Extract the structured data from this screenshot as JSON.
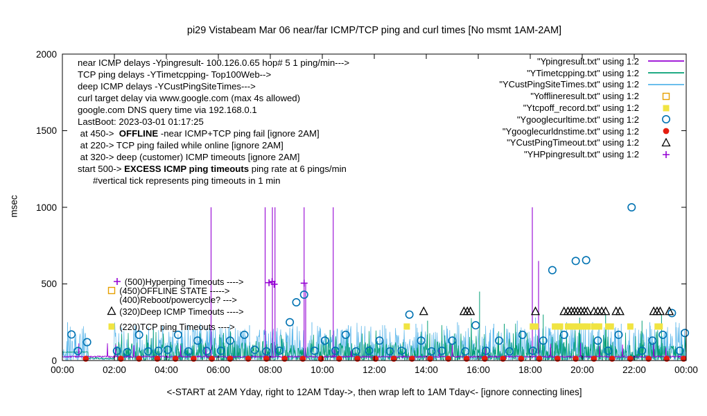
{
  "title": "pi29 Vistabeam Mar 06  near/far ICMP/TCP ping and curl times [No msmt 1AM-2AM]",
  "chart_data": {
    "type": "line",
    "title": "pi29 Vistabeam Mar 06  near/far ICMP/TCP ping and curl times [No msmt 1AM-2AM]",
    "ylabel": "msec",
    "xlabel": "<-START at 2AM Yday, right to 12AM Tday->, then wrap left to 1AM Tday<- [ignore connecting lines]",
    "xlim": [
      0,
      24
    ],
    "ylim": [
      0,
      2000
    ],
    "yticks": [
      0,
      500,
      1000,
      1500,
      2000
    ],
    "xtick_labels": [
      "00:00",
      "02:00",
      "04:00",
      "06:00",
      "08:00",
      "10:00",
      "12:00",
      "14:00",
      "16:00",
      "18:00",
      "20:00",
      "22:00",
      "00:00"
    ],
    "grid": false,
    "legend_position": "top-right-inside",
    "legend": [
      {
        "name": "near-icmp",
        "label": "\"Ypingresult.txt\" using 1:2",
        "marker": "line",
        "color": "#9400d3"
      },
      {
        "name": "tcp-ping",
        "label": "\"YTimetcpping.txt\" using 1:2",
        "marker": "line",
        "color": "#009e73"
      },
      {
        "name": "deep-icmp",
        "label": "\"YCustPingSiteTimes.txt\" using 1:2",
        "marker": "line",
        "color": "#56b4e9"
      },
      {
        "name": "offline",
        "label": "\"Yofflineresult.txt\" using 1:2",
        "marker": "open-square",
        "color": "#e69f00"
      },
      {
        "name": "tcp-off",
        "label": "\"Ytcpoff_record.txt\" using 1:2",
        "marker": "filled-square",
        "color": "#f0e442"
      },
      {
        "name": "curl-time",
        "label": "\"Ygooglecurltime.txt\" using 1:2",
        "marker": "open-circle",
        "color": "#0072b2"
      },
      {
        "name": "dns-time",
        "label": "\"Ygooglecurldnstime.txt\" using 1:2",
        "marker": "filled-circle",
        "color": "#e51e10"
      },
      {
        "name": "cust-timeout",
        "label": "\"YCustPingTimeout.txt\" using 1:2",
        "marker": "open-triangle",
        "color": "#000000"
      },
      {
        "name": "hp-ping",
        "label": "\"YHPpingresult.txt\" using 1:2",
        "marker": "plus",
        "color": "#9400d3"
      }
    ],
    "notes": [
      [
        {
          "t": "near ICMP delays -Ypingresult- 100.126.0.65 hop# 5 1 ping/min--->"
        }
      ],
      [
        {
          "t": "TCP ping delays -YTimetcpping- Top100Web-->"
        }
      ],
      [
        {
          "t": "deep ICMP delays -YCustPingSiteTimes--->"
        }
      ],
      [
        {
          "t": "curl target delay via www.google.com (max 4s allowed)"
        }
      ],
      [
        {
          "t": "google.com DNS query time via 192.168.0.1"
        }
      ],
      [
        {
          "t": "LastBoot: 2023-03-01 01:17:25"
        }
      ],
      [
        {
          "t": " at 450->  "
        },
        {
          "t": "OFFLINE",
          "b": true
        },
        {
          "t": " -near ICMP+TCP ping fail [ignore 2AM]"
        }
      ],
      [
        {
          "t": " at 220-> TCP ping failed while online [ignore 2AM]"
        }
      ],
      [
        {
          "t": " at 320-> deep (customer) ICMP timeouts [ignore 2AM]"
        }
      ],
      [
        {
          "t": "start 500-> "
        },
        {
          "t": "EXCESS ICMP ping timeouts",
          "b": true
        },
        {
          "t": " ping rate at 6 pings/min"
        }
      ],
      [
        {
          "t": "      #vertical tick represents ping timeouts in 1 min"
        }
      ]
    ],
    "event_labels": [
      {
        "marker": "plus",
        "color": "#9400d3",
        "text": "(500)Hyperping Timeouts ---->",
        "x": 2.1,
        "y": 515
      },
      {
        "marker": "open-square",
        "color": "#e69f00",
        "text": "(450)OFFLINE STATE ----->",
        "x": 1.9,
        "y": 455
      },
      {
        "marker": "",
        "color": "",
        "text": "(400)Reboot/powercycle? --->",
        "x": 1.9,
        "y": 395
      },
      {
        "marker": "open-triangle",
        "color": "#000000",
        "text": "(320)Deep ICMP Timeouts ---->",
        "x": 1.9,
        "y": 320
      },
      {
        "marker": "filled-square",
        "color": "#f0e442",
        "text": "(220)TCP ping Timeouts ---->",
        "x": 1.9,
        "y": 220
      }
    ],
    "series": {
      "near_icmp": {
        "color": "#9400d3",
        "style": "noisy-line",
        "baseline": 25,
        "jitter": 10
      },
      "near_icmp_impulses": {
        "color": "#9400d3",
        "points": [
          [
            5.72,
            1000
          ],
          [
            7.8,
            1000
          ],
          [
            8.08,
            1000
          ],
          [
            8.18,
            1000
          ],
          [
            9.3,
            1000
          ],
          [
            9.36,
            500
          ],
          [
            10.42,
            1000
          ],
          [
            18.08,
            1000
          ],
          [
            18.32,
            650
          ]
        ]
      },
      "tcp_ping": {
        "color": "#009e73",
        "style": "noisy-line",
        "band": [
          0,
          200
        ],
        "spikes": [
          [
            3.5,
            200
          ],
          [
            6.2,
            180
          ],
          [
            10.3,
            200
          ],
          [
            14.05,
            260
          ],
          [
            16.05,
            450
          ],
          [
            17.0,
            240
          ],
          [
            18.5,
            300
          ],
          [
            19.9,
            280
          ],
          [
            20.9,
            300
          ],
          [
            22.3,
            260
          ],
          [
            23.05,
            300
          ]
        ]
      },
      "deep_icmp": {
        "color": "#56b4e9",
        "style": "noisy-line",
        "band": [
          0,
          250
        ],
        "spikes": [
          [
            0.2,
            250
          ],
          [
            2.8,
            230
          ],
          [
            4.6,
            240
          ],
          [
            5.3,
            240
          ],
          [
            7.2,
            230
          ],
          [
            9.6,
            250
          ],
          [
            11.0,
            230
          ],
          [
            12.4,
            230
          ],
          [
            13.6,
            240
          ],
          [
            15.2,
            250
          ],
          [
            16.6,
            240
          ],
          [
            17.5,
            260
          ],
          [
            18.2,
            280
          ],
          [
            19.4,
            250
          ],
          [
            20.4,
            250
          ],
          [
            21.5,
            240
          ],
          [
            22.6,
            250
          ],
          [
            23.6,
            250
          ]
        ]
      },
      "offline_squares": {
        "color": "#e69f00",
        "marker": "open-square",
        "points": []
      },
      "tcpoff_squares": {
        "color": "#f0e442",
        "marker": "filled-square",
        "y": 222,
        "x": [
          13.25,
          18.1,
          18.2,
          18.95,
          19.05,
          19.15,
          19.45,
          19.55,
          19.65,
          19.75,
          19.85,
          20.0,
          20.1,
          20.2,
          20.45,
          20.55,
          20.65,
          21.0,
          21.1,
          21.85,
          22.9,
          22.98
        ]
      },
      "curl_circles": {
        "color": "#0072b2",
        "marker": "open-circle",
        "points": [
          [
            0.35,
            170
          ],
          [
            0.6,
            62
          ],
          [
            0.95,
            120
          ],
          [
            2.1,
            62
          ],
          [
            2.5,
            55
          ],
          [
            2.95,
            168
          ],
          [
            3.3,
            60
          ],
          [
            3.7,
            64
          ],
          [
            4.05,
            70
          ],
          [
            4.45,
            168
          ],
          [
            4.85,
            60
          ],
          [
            5.2,
            130
          ],
          [
            5.55,
            62
          ],
          [
            6.1,
            64
          ],
          [
            6.45,
            130
          ],
          [
            7.0,
            168
          ],
          [
            7.4,
            70
          ],
          [
            7.85,
            60
          ],
          [
            8.35,
            64
          ],
          [
            8.75,
            250
          ],
          [
            9.0,
            380
          ],
          [
            9.3,
            430
          ],
          [
            9.7,
            64
          ],
          [
            10.1,
            130
          ],
          [
            10.5,
            64
          ],
          [
            10.9,
            168
          ],
          [
            11.3,
            60
          ],
          [
            11.8,
            64
          ],
          [
            12.2,
            130
          ],
          [
            12.6,
            60
          ],
          [
            13.05,
            64
          ],
          [
            13.35,
            300
          ],
          [
            13.8,
            130
          ],
          [
            14.2,
            60
          ],
          [
            14.6,
            64
          ],
          [
            15.0,
            130
          ],
          [
            15.5,
            60
          ],
          [
            15.9,
            230
          ],
          [
            16.3,
            64
          ],
          [
            16.8,
            130
          ],
          [
            17.2,
            60
          ],
          [
            17.7,
            168
          ],
          [
            18.1,
            64
          ],
          [
            18.5,
            130
          ],
          [
            18.85,
            590
          ],
          [
            19.3,
            168
          ],
          [
            19.75,
            650
          ],
          [
            20.15,
            655
          ],
          [
            20.6,
            130
          ],
          [
            21.0,
            64
          ],
          [
            21.4,
            168
          ],
          [
            21.9,
            1000
          ],
          [
            22.3,
            64
          ],
          [
            22.7,
            130
          ],
          [
            23.1,
            168
          ],
          [
            23.45,
            310
          ],
          [
            23.75,
            64
          ],
          [
            23.95,
            180
          ]
        ]
      },
      "dns_dots": {
        "color": "#e51e10",
        "marker": "filled-circle",
        "y": 12,
        "x": [
          0.9,
          2.25,
          2.95,
          3.65,
          4.35,
          5.05,
          5.75,
          6.45,
          7.15,
          7.85,
          8.55,
          9.25,
          9.95,
          10.65,
          11.35,
          12.05,
          12.75,
          13.45,
          14.15,
          14.85,
          15.55,
          16.25,
          16.95,
          17.65,
          18.35,
          19.05,
          19.75,
          20.45,
          21.15,
          21.85,
          22.55,
          23.25,
          23.9
        ]
      },
      "cust_timeouts": {
        "color": "#000000",
        "marker": "open-triangle",
        "y": 320,
        "x": [
          13.9,
          15.45,
          15.58,
          15.7,
          18.2,
          19.3,
          19.45,
          19.58,
          19.7,
          19.82,
          19.95,
          20.08,
          20.2,
          20.45,
          20.6,
          20.75,
          20.9,
          21.3,
          21.45,
          22.75,
          22.88,
          23.0,
          23.35
        ]
      },
      "hp_plus": {
        "color": "#9400d3",
        "marker": "plus",
        "points": [
          [
            7.95,
            508
          ],
          [
            8.07,
            515
          ],
          [
            8.15,
            498
          ],
          [
            9.3,
            505
          ]
        ]
      }
    }
  }
}
